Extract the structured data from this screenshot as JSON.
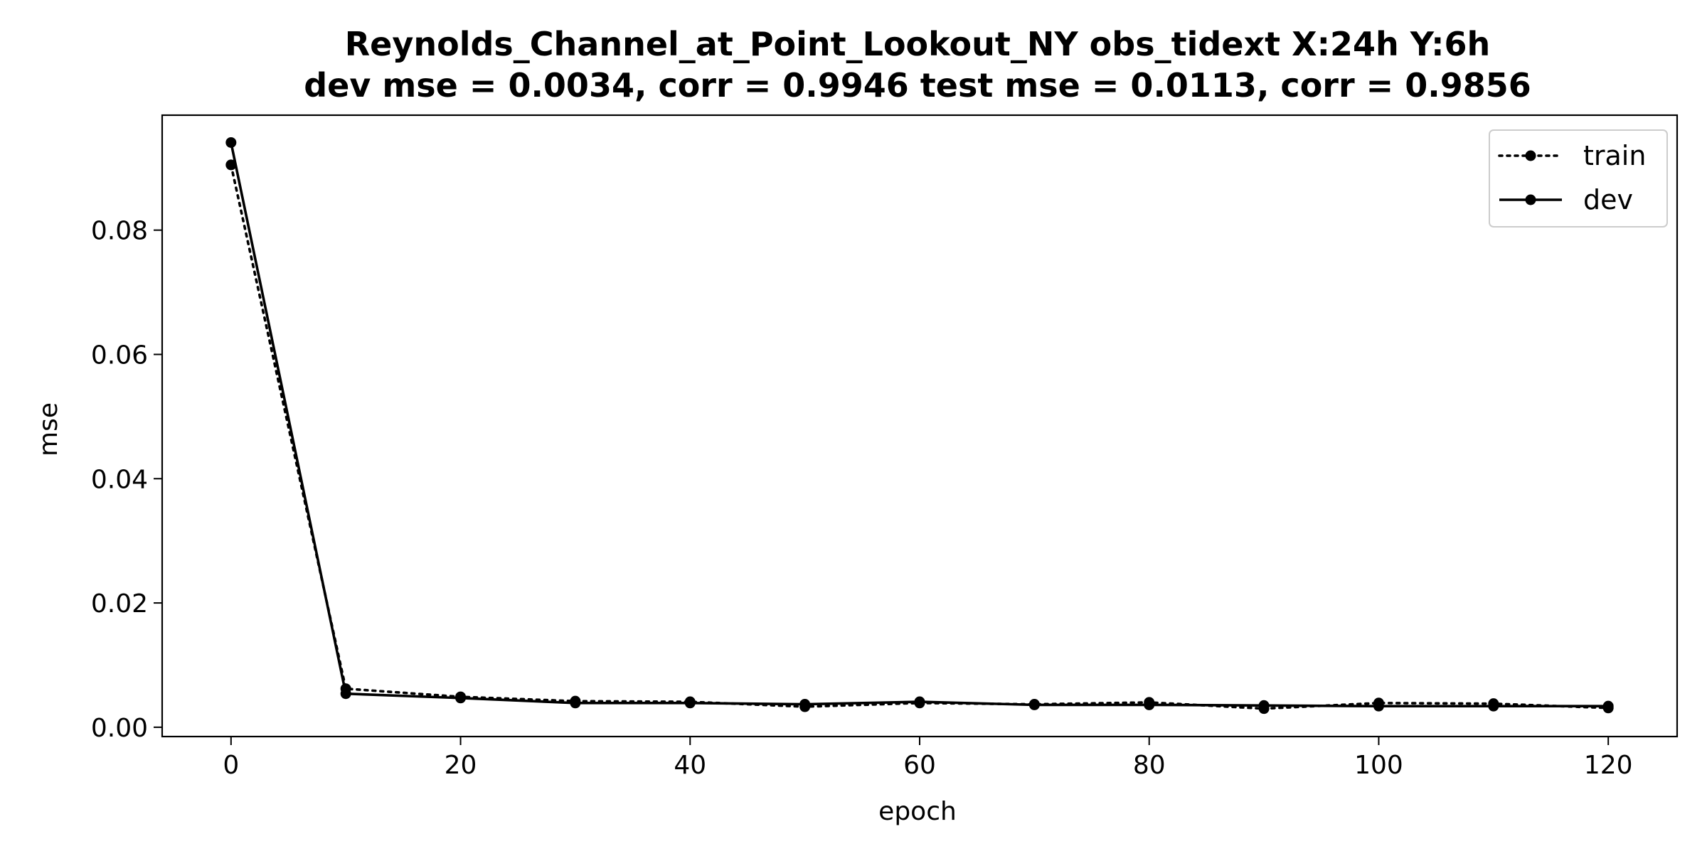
{
  "chart_data": {
    "type": "line",
    "title": "Reynolds_Channel_at_Point_Lookout_NY   obs_tidext   X:24h   Y:6h",
    "subtitle": "dev mse = 0.0034, corr = 0.9946   test mse = 0.0113, corr = 0.9856",
    "xlabel": "epoch",
    "ylabel": "mse",
    "xlim": [
      -6,
      126
    ],
    "ylim": [
      -0.0015,
      0.0985
    ],
    "xticks": [
      0,
      20,
      40,
      60,
      80,
      100,
      120
    ],
    "yticks": [
      0.0,
      0.02,
      0.04,
      0.06,
      0.08
    ],
    "xtick_labels": [
      "0",
      "20",
      "40",
      "60",
      "80",
      "100",
      "120"
    ],
    "ytick_labels": [
      "0.00",
      "0.02",
      "0.04",
      "0.06",
      "0.08"
    ],
    "grid": false,
    "legend_position": "top-right",
    "x": [
      0,
      10,
      20,
      30,
      40,
      50,
      60,
      70,
      80,
      90,
      100,
      110,
      120
    ],
    "series": [
      {
        "name": "train",
        "line_style": "dotted",
        "marker": "circle",
        "color": "#000000",
        "values": [
          0.0905,
          0.0062,
          0.0049,
          0.0042,
          0.0041,
          0.0033,
          0.0039,
          0.0037,
          0.004,
          0.003,
          0.0039,
          0.0038,
          0.0031
        ]
      },
      {
        "name": "dev",
        "line_style": "solid",
        "marker": "circle",
        "color": "#000000",
        "values": [
          0.0941,
          0.0054,
          0.0047,
          0.0039,
          0.0039,
          0.0037,
          0.0041,
          0.0036,
          0.0036,
          0.0035,
          0.0034,
          0.0034,
          0.0034
        ]
      }
    ]
  }
}
